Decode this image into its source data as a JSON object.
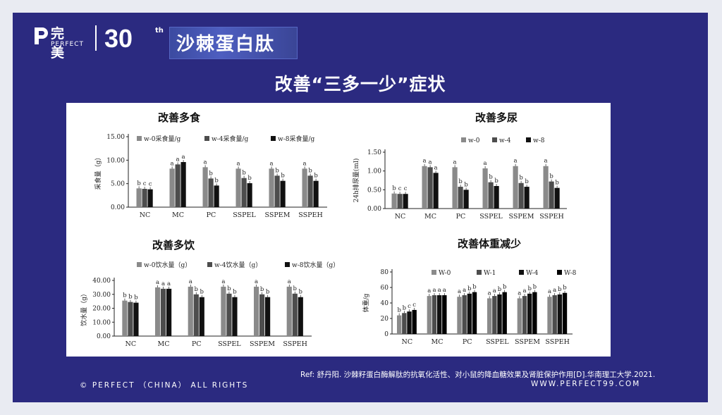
{
  "header": {
    "logo_cn": "完美",
    "logo_en": "PERFECT",
    "anniversary": "30",
    "anniversary_sup": "th",
    "banner": "沙棘蛋白肽",
    "subtitle": "改善“三多一少”症状"
  },
  "footer": {
    "ref": "Ref: 舒丹阳. 沙棘籽蛋白酶解肽的抗氧化活性、对小鼠的降血糖效果及肾脏保护作用[D].华南理工大学.2021.",
    "copyright": "© PERFECT （CHINA） ALL RIGHTS",
    "website": "WWW.PERFECT99.COM"
  },
  "colors": {
    "background": "#2b2a80",
    "series": [
      "#8a8a8a",
      "#4d4d4d",
      "#111111"
    ]
  },
  "chart_data": [
    {
      "type": "bar",
      "title": "改善多食",
      "ylabel": "采食量（g）",
      "ylim": [
        0,
        15
      ],
      "yticks": [
        "0.00",
        "5.00",
        "10.00",
        "15.00"
      ],
      "categories": [
        "NC",
        "MC",
        "PC",
        "SSPEL",
        "SSPEM",
        "SSPEH"
      ],
      "series": [
        {
          "name": "w-0采食量/g",
          "values": [
            4.0,
            8.2,
            8.5,
            8.2,
            8.2,
            8.2
          ]
        },
        {
          "name": "w-4采食量/g",
          "values": [
            3.9,
            9.1,
            6.1,
            6.2,
            6.7,
            6.7
          ]
        },
        {
          "name": "w-8采食量/g",
          "values": [
            3.8,
            9.6,
            4.6,
            5.1,
            5.6,
            5.6
          ]
        }
      ],
      "significance": [
        [
          "b",
          "c",
          "c"
        ],
        [
          "a",
          "a",
          "a"
        ],
        [
          "a",
          "b",
          "b"
        ],
        [
          "a",
          "b",
          "b"
        ],
        [
          "a",
          "b",
          "b"
        ],
        [
          "a",
          "b",
          "b"
        ]
      ]
    },
    {
      "type": "bar",
      "title": "改善多尿",
      "ylabel": "24h排尿量(ml)",
      "ylim": [
        0,
        1.5
      ],
      "yticks": [
        "0.00",
        "0.50",
        "1.00",
        "1.50"
      ],
      "categories": [
        "NC",
        "MC",
        "PC",
        "SSPEL",
        "SSPEM",
        "SSPEH"
      ],
      "series": [
        {
          "name": "w-0",
          "values": [
            0.4,
            1.13,
            1.1,
            1.07,
            1.13,
            1.13
          ]
        },
        {
          "name": "w-4",
          "values": [
            0.39,
            1.1,
            0.58,
            0.7,
            0.68,
            0.72
          ]
        },
        {
          "name": "w-8",
          "values": [
            0.39,
            0.95,
            0.5,
            0.6,
            0.58,
            0.55
          ]
        }
      ],
      "significance": [
        [
          "b",
          "c",
          "c"
        ],
        [
          "a",
          "a",
          "a"
        ],
        [
          "a",
          "b",
          "b"
        ],
        [
          "a",
          "b",
          "b"
        ],
        [
          "a",
          "b",
          "b"
        ],
        [
          "a",
          "b",
          "b"
        ]
      ]
    },
    {
      "type": "bar",
      "title": "改善多饮",
      "ylabel": "饮水量（g）",
      "ylim": [
        0,
        40
      ],
      "yticks": [
        "0.00",
        "10.00",
        "20.00",
        "30.00",
        "40.00"
      ],
      "categories": [
        "NC",
        "MC",
        "PC",
        "SSPEL",
        "SSPEM",
        "SSPEH"
      ],
      "series": [
        {
          "name": "w-0饮水量（g）",
          "values": [
            25.5,
            35.0,
            35.5,
            35.5,
            35.5,
            35.5
          ]
        },
        {
          "name": "w-4饮水量（g）",
          "values": [
            24.5,
            34.0,
            30.0,
            30.5,
            30.0,
            30.5
          ]
        },
        {
          "name": "w-8饮水量（g）",
          "values": [
            24.0,
            34.0,
            28.0,
            28.0,
            28.0,
            28.0
          ]
        }
      ],
      "significance": [
        [
          "b",
          "b",
          "b"
        ],
        [
          "a",
          "a",
          "a"
        ],
        [
          "a",
          "b",
          "b"
        ],
        [
          "a",
          "b",
          "b"
        ],
        [
          "a",
          "b",
          "b"
        ],
        [
          "a",
          "b",
          "b"
        ]
      ]
    },
    {
      "type": "bar",
      "title": "改善体重减少",
      "ylabel": "体重/g",
      "ylim": [
        0,
        80
      ],
      "yticks": [
        "0",
        "20",
        "40",
        "60",
        "80"
      ],
      "categories": [
        "NC",
        "MC",
        "PC",
        "SSPEL",
        "SSPEM",
        "SSPEH"
      ],
      "series": [
        {
          "name": "W-0",
          "values": [
            24,
            49,
            48,
            46,
            46,
            48
          ]
        },
        {
          "name": "W-1",
          "values": [
            27,
            50,
            50,
            49,
            49,
            50
          ]
        },
        {
          "name": "W-4",
          "values": [
            29,
            50,
            52,
            51,
            52,
            51
          ]
        },
        {
          "name": "W-8",
          "values": [
            31,
            50,
            54,
            54,
            54,
            53
          ]
        }
      ],
      "significance": [
        [
          "b",
          "b",
          "c",
          "c"
        ],
        [
          "a",
          "a",
          "a",
          "a"
        ],
        [
          "a",
          "a",
          "b",
          "b"
        ],
        [
          "a",
          "a",
          "b",
          "b"
        ],
        [
          "a",
          "a",
          "b",
          "b"
        ],
        [
          "a",
          "a",
          "b",
          "b"
        ]
      ]
    }
  ]
}
